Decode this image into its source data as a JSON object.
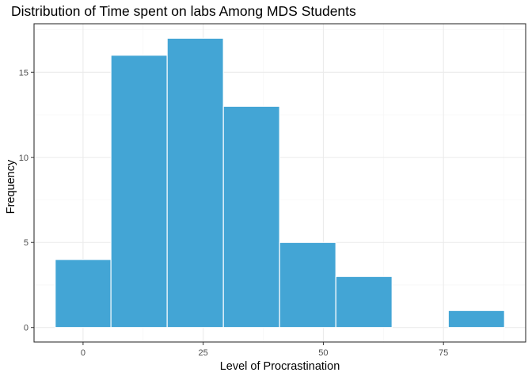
{
  "chart_data": {
    "type": "bar",
    "title": "Distribution of Time spent on labs Among MDS Students",
    "xlabel": "Level of Procrastination",
    "ylabel": "Frequency",
    "bins": [
      {
        "x_start": -5.8,
        "x_end": 5.8,
        "value": 4
      },
      {
        "x_start": 5.8,
        "x_end": 17.5,
        "value": 16
      },
      {
        "x_start": 17.5,
        "x_end": 29.2,
        "value": 17
      },
      {
        "x_start": 29.2,
        "x_end": 40.9,
        "value": 13
      },
      {
        "x_start": 40.9,
        "x_end": 52.6,
        "value": 5
      },
      {
        "x_start": 52.6,
        "x_end": 64.3,
        "value": 3
      },
      {
        "x_start": 64.3,
        "x_end": 76.0,
        "value": 0
      },
      {
        "x_start": 76.0,
        "x_end": 87.7,
        "value": 1
      }
    ],
    "xlim": [
      -10.2,
      92.1
    ],
    "ylim": [
      -0.85,
      17.85
    ],
    "x_ticks": [
      0,
      25,
      50,
      75
    ],
    "y_ticks": [
      0,
      5,
      10,
      15
    ],
    "grid": true,
    "legend": "none",
    "colors": {
      "bar_fill": "#43a5d5",
      "bar_border": "#ffffff",
      "grid_major": "#ebebeb",
      "grid_minor": "#f5f5f5",
      "panel_border": "#333333",
      "tick_label": "#4d4d4d"
    }
  }
}
